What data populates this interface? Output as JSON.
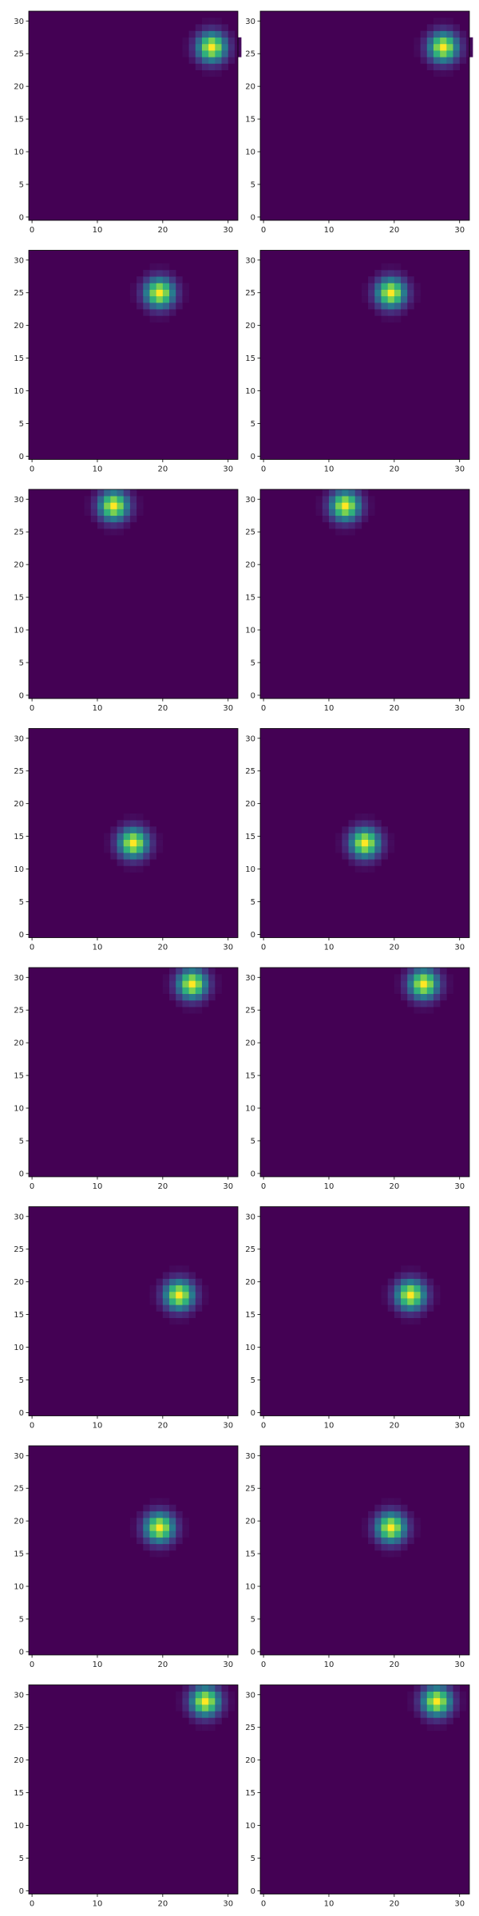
{
  "chart_data": {
    "type": "heatmap",
    "colormap": "viridis",
    "grid": false,
    "layout": "8 rows x 2 columns",
    "xlim": [
      -0.5,
      31.5
    ],
    "ylim": [
      -0.5,
      31.5
    ],
    "xticks": [
      0,
      10,
      20,
      30
    ],
    "xtick_labels": [
      "0",
      "10",
      "20",
      "30"
    ],
    "yticks": [
      0,
      5,
      10,
      15,
      20,
      25,
      30
    ],
    "ytick_labels": [
      "0",
      "5",
      "10",
      "15",
      "20",
      "25",
      "30"
    ],
    "blob_sigma_pixels": 1.5,
    "panels": [
      {
        "row": 1,
        "col": 1,
        "peak_x": 27,
        "peak_y": 26
      },
      {
        "row": 1,
        "col": 2,
        "peak_x": 27,
        "peak_y": 26
      },
      {
        "row": 2,
        "col": 1,
        "peak_x": 19,
        "peak_y": 25
      },
      {
        "row": 2,
        "col": 2,
        "peak_x": 19,
        "peak_y": 25
      },
      {
        "row": 3,
        "col": 1,
        "peak_x": 12,
        "peak_y": 29
      },
      {
        "row": 3,
        "col": 2,
        "peak_x": 12,
        "peak_y": 29
      },
      {
        "row": 4,
        "col": 1,
        "peak_x": 15,
        "peak_y": 14
      },
      {
        "row": 4,
        "col": 2,
        "peak_x": 15,
        "peak_y": 14
      },
      {
        "row": 5,
        "col": 1,
        "peak_x": 24,
        "peak_y": 29
      },
      {
        "row": 5,
        "col": 2,
        "peak_x": 24,
        "peak_y": 29
      },
      {
        "row": 6,
        "col": 1,
        "peak_x": 22,
        "peak_y": 18
      },
      {
        "row": 6,
        "col": 2,
        "peak_x": 22,
        "peak_y": 18
      },
      {
        "row": 7,
        "col": 1,
        "peak_x": 19,
        "peak_y": 19
      },
      {
        "row": 7,
        "col": 2,
        "peak_x": 19,
        "peak_y": 19
      },
      {
        "row": 8,
        "col": 1,
        "peak_x": 26,
        "peak_y": 29
      },
      {
        "row": 8,
        "col": 2,
        "peak_x": 26,
        "peak_y": 29
      }
    ]
  }
}
